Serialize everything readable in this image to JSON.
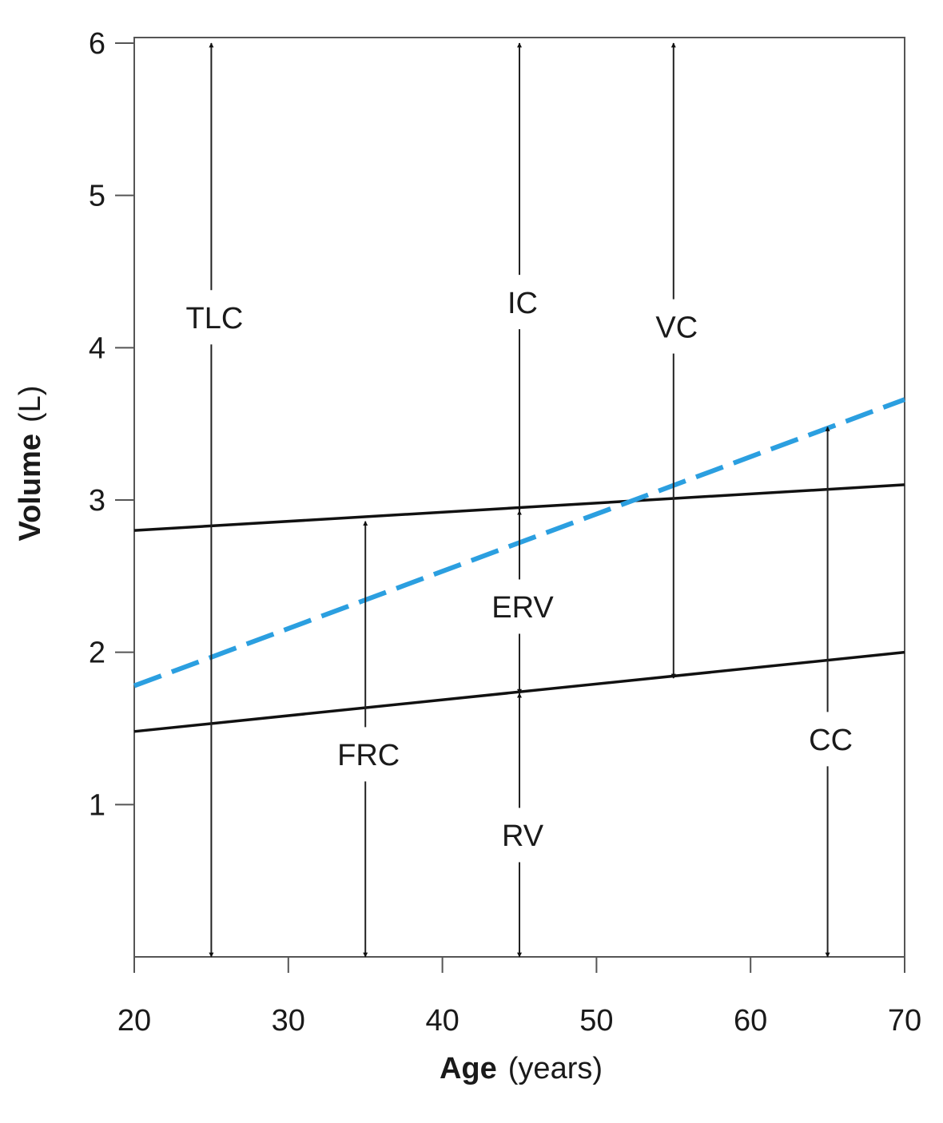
{
  "chart_data": {
    "type": "line",
    "xlabel": "Age",
    "xlabel_unit": "(years)",
    "ylabel": "Volume",
    "ylabel_unit": "(L)",
    "xlim": [
      20,
      70
    ],
    "ylim": [
      0,
      6
    ],
    "x_ticks": [
      20,
      30,
      40,
      50,
      60,
      70
    ],
    "y_ticks": [
      1,
      2,
      3,
      4,
      5,
      6
    ],
    "grid": false,
    "lines": [
      {
        "id": "frc-line",
        "style": "solid",
        "color": "#111111",
        "x": [
          20,
          70
        ],
        "y": [
          2.8,
          3.1
        ]
      },
      {
        "id": "rv-line",
        "style": "solid",
        "color": "#111111",
        "x": [
          20,
          70
        ],
        "y": [
          1.48,
          2.0
        ]
      },
      {
        "id": "cc-line",
        "style": "dashed",
        "color": "#2b9fe0",
        "x": [
          20,
          70
        ],
        "y": [
          1.78,
          3.66
        ]
      }
    ],
    "annotations": [
      {
        "label": "TLC",
        "x": 25,
        "y_from": 0.0,
        "y_to": 6.0,
        "label_y": 4.2
      },
      {
        "label": "IC",
        "x": 45,
        "y_from": 2.93,
        "y_to": 6.0,
        "label_y": 4.3
      },
      {
        "label": "VC",
        "x": 55,
        "y_from": 1.83,
        "y_to": 6.0,
        "label_y": 4.14
      },
      {
        "label": "FRC",
        "x": 35,
        "y_from": 0.0,
        "y_to": 2.86,
        "label_y": 1.33
      },
      {
        "label": "ERV",
        "x": 45,
        "y_from": 1.73,
        "y_to": 2.93,
        "label_y": 2.3
      },
      {
        "label": "RV",
        "x": 45,
        "y_from": 0.0,
        "y_to": 1.73,
        "label_y": 0.8
      },
      {
        "label": "CC",
        "x": 65,
        "y_from": 0.0,
        "y_to": 3.48,
        "label_y": 1.43
      }
    ]
  }
}
